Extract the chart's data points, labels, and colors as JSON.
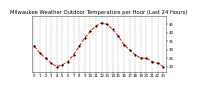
{
  "title": "Milwaukee Weather Outdoor Temperature per Hour (Last 24 Hours)",
  "x_values": [
    0,
    1,
    2,
    3,
    4,
    5,
    6,
    7,
    8,
    9,
    10,
    11,
    12,
    13,
    14,
    15,
    16,
    17,
    18,
    19,
    20,
    21,
    22,
    23
  ],
  "y_values": [
    32,
    28,
    25,
    22,
    20,
    21,
    23,
    27,
    32,
    37,
    41,
    44,
    46,
    45,
    42,
    38,
    33,
    30,
    27,
    25,
    25,
    23,
    22,
    20
  ],
  "line_color": "#ff0000",
  "marker_color": "#000000",
  "background_color": "#ffffff",
  "grid_color": "#888888",
  "ylim": [
    17,
    50
  ],
  "xlim": [
    -0.5,
    23.5
  ],
  "yticks": [
    20,
    25,
    30,
    35,
    40,
    45
  ],
  "xticks": [
    0,
    1,
    2,
    3,
    4,
    5,
    6,
    7,
    8,
    9,
    10,
    11,
    12,
    13,
    14,
    15,
    16,
    17,
    18,
    19,
    20,
    21,
    22,
    23
  ],
  "title_fontsize": 3.8,
  "tick_fontsize": 2.8,
  "line_width": 0.7,
  "marker_size": 1.2,
  "yaxis_right": true
}
